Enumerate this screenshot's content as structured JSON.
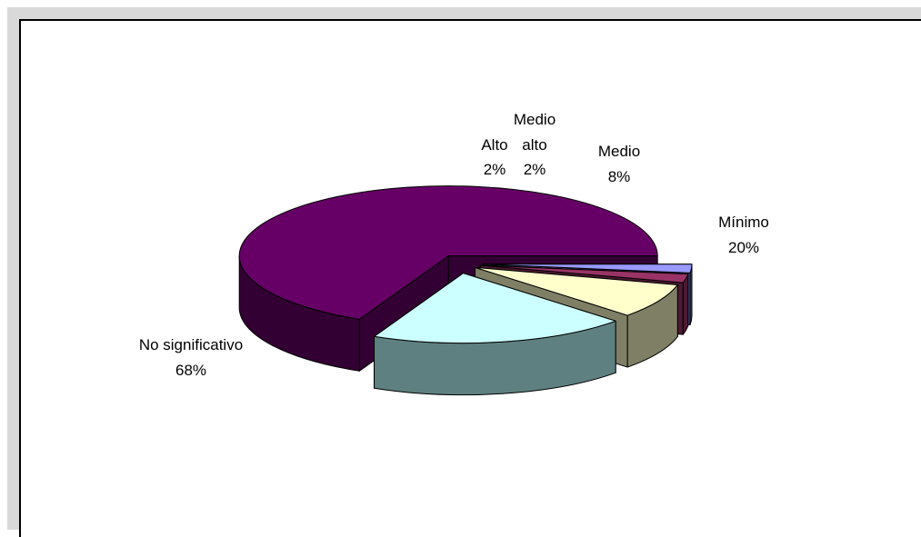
{
  "chart_data": {
    "type": "pie",
    "style": "3d-exploded",
    "categories": [
      "Alto",
      "Medio alto",
      "Medio",
      "Mínimo",
      "No significativo"
    ],
    "values": [
      2,
      2,
      8,
      20,
      68
    ],
    "value_labels": [
      "2%",
      "2%",
      "8%",
      "20%",
      "68%"
    ],
    "colors": {
      "top": [
        "#9999ff",
        "#993366",
        "#ffffcc",
        "#ccffff",
        "#660066"
      ],
      "side": [
        "#4d4d8f",
        "#4d1a33",
        "#7f7f66",
        "#5f8080",
        "#330033"
      ]
    },
    "legend": "none"
  }
}
